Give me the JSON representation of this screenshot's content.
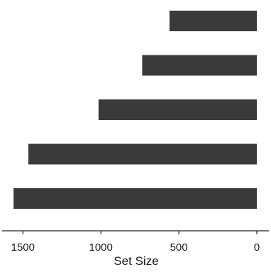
{
  "chart_data": {
    "type": "bar",
    "orientation": "horizontal",
    "x_direction": "reversed",
    "bar_color": "#3a3a3a",
    "categories": [
      "",
      "",
      "",
      "",
      ""
    ],
    "values": [
      560,
      735,
      1015,
      1465,
      1560
    ],
    "xlabel": "Set Size",
    "ylabel": "",
    "xlim": [
      0,
      1600
    ],
    "xticks": [
      1500,
      1000,
      500,
      0
    ],
    "xtick_labels": [
      "1500",
      "1000",
      "500",
      "0"
    ],
    "grid": false,
    "legend": "none"
  }
}
